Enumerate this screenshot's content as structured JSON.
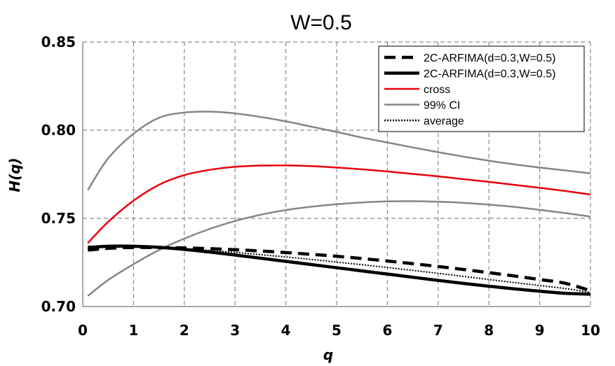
{
  "chart_data": {
    "type": "line",
    "title": "W=0.5",
    "xlabel": "q",
    "ylabel": "H(q)",
    "xlim": [
      0,
      10
    ],
    "ylim": [
      0.7,
      0.85
    ],
    "xticks": [
      0,
      1,
      2,
      3,
      4,
      5,
      6,
      7,
      8,
      9,
      10
    ],
    "yticks": [
      0.7,
      0.75,
      0.8,
      0.85
    ],
    "ytick_labels": [
      "0.70",
      "0.75",
      "0.80",
      "0.85"
    ],
    "grid": true,
    "legend_position": "top-right",
    "series": [
      {
        "name": "2C-ARFIMA(d=0.3,W=0.5)",
        "color": "#000000",
        "style": "dashed-thick",
        "x": [
          0.1,
          0.5,
          1,
          1.5,
          2,
          2.5,
          3,
          3.5,
          4,
          4.5,
          5,
          5.5,
          6,
          6.5,
          7,
          7.5,
          8,
          8.5,
          9,
          9.5,
          10
        ],
        "y": [
          0.732,
          0.733,
          0.7335,
          0.7334,
          0.7332,
          0.7328,
          0.7322,
          0.7315,
          0.7306,
          0.7296,
          0.7285,
          0.7272,
          0.7258,
          0.7243,
          0.7227,
          0.721,
          0.7192,
          0.7173,
          0.7153,
          0.7132,
          0.709
        ]
      },
      {
        "name": "2C-ARFIMA(d=0.3,W=0.5)",
        "color": "#000000",
        "style": "solid-thick",
        "x": [
          0.1,
          0.5,
          1,
          1.5,
          2,
          2.5,
          3,
          3.5,
          4,
          4.5,
          5,
          5.5,
          6,
          6.5,
          7,
          7.5,
          8,
          8.5,
          9,
          9.5,
          10
        ],
        "y": [
          0.7335,
          0.7342,
          0.7342,
          0.7336,
          0.7324,
          0.7309,
          0.7292,
          0.7274,
          0.7256,
          0.7238,
          0.722,
          0.7202,
          0.7184,
          0.7166,
          0.7148,
          0.7131,
          0.7115,
          0.71,
          0.7087,
          0.7075,
          0.707
        ]
      },
      {
        "name": "cross",
        "color": "#e8000b",
        "style": "solid",
        "x": [
          0.1,
          0.5,
          1,
          1.5,
          2,
          2.5,
          3,
          3.5,
          4,
          4.5,
          5,
          5.5,
          6,
          6.5,
          7,
          7.5,
          8,
          8.5,
          9,
          9.5,
          10
        ],
        "y": [
          0.736,
          0.748,
          0.76,
          0.769,
          0.7745,
          0.7775,
          0.7792,
          0.7799,
          0.78,
          0.7796,
          0.7788,
          0.7778,
          0.7766,
          0.7752,
          0.7738,
          0.7722,
          0.7707,
          0.769,
          0.7673,
          0.7655,
          0.7635
        ]
      },
      {
        "name": "99% CI",
        "color": "#858585",
        "style": "solid",
        "x": [
          0.1,
          0.5,
          1,
          1.5,
          2,
          2.5,
          3,
          3.5,
          4,
          4.5,
          5,
          5.5,
          6,
          6.5,
          7,
          7.5,
          8,
          8.5,
          9,
          9.5,
          10
        ],
        "y": [
          0.766,
          0.784,
          0.798,
          0.807,
          0.81,
          0.8105,
          0.8095,
          0.8075,
          0.805,
          0.802,
          0.799,
          0.7958,
          0.793,
          0.7902,
          0.7875,
          0.785,
          0.7827,
          0.7806,
          0.7788,
          0.7772,
          0.7755
        ]
      },
      {
        "name": "",
        "color": "#858585",
        "style": "solid",
        "x": [
          0.1,
          0.5,
          1,
          1.5,
          2,
          2.5,
          3,
          3.5,
          4,
          4.5,
          5,
          5.5,
          6,
          6.5,
          7,
          7.5,
          8,
          8.5,
          9,
          9.5,
          10
        ],
        "y": [
          0.706,
          0.715,
          0.724,
          0.732,
          0.7385,
          0.744,
          0.7485,
          0.752,
          0.7547,
          0.7566,
          0.758,
          0.759,
          0.7596,
          0.7597,
          0.7594,
          0.7588,
          0.7578,
          0.7565,
          0.7548,
          0.753,
          0.751
        ]
      },
      {
        "name": "average",
        "color": "#000000",
        "style": "dotted",
        "x": [
          0.1,
          0.5,
          1,
          1.5,
          2,
          2.5,
          3,
          3.5,
          4,
          4.5,
          5,
          5.5,
          6,
          6.5,
          7,
          7.5,
          8,
          8.5,
          9,
          9.5,
          10
        ],
        "y": [
          0.7328,
          0.7336,
          0.7338,
          0.7335,
          0.7328,
          0.7318,
          0.7307,
          0.7294,
          0.7281,
          0.7267,
          0.7252,
          0.7237,
          0.7221,
          0.7205,
          0.7188,
          0.7171,
          0.7153,
          0.7136,
          0.7119,
          0.7102,
          0.708
        ]
      }
    ],
    "legend": [
      {
        "label": "2C-ARFIMA(d=0.3,W=0.5)",
        "style": "dashed-thick",
        "color": "#000000"
      },
      {
        "label": "2C-ARFIMA(d=0.3,W=0.5)",
        "style": "solid-thick",
        "color": "#000000"
      },
      {
        "label": "cross",
        "style": "solid",
        "color": "#e8000b"
      },
      {
        "label": "99% CI",
        "style": "solid",
        "color": "#858585"
      },
      {
        "label": "average",
        "style": "dotted",
        "color": "#000000"
      }
    ]
  }
}
